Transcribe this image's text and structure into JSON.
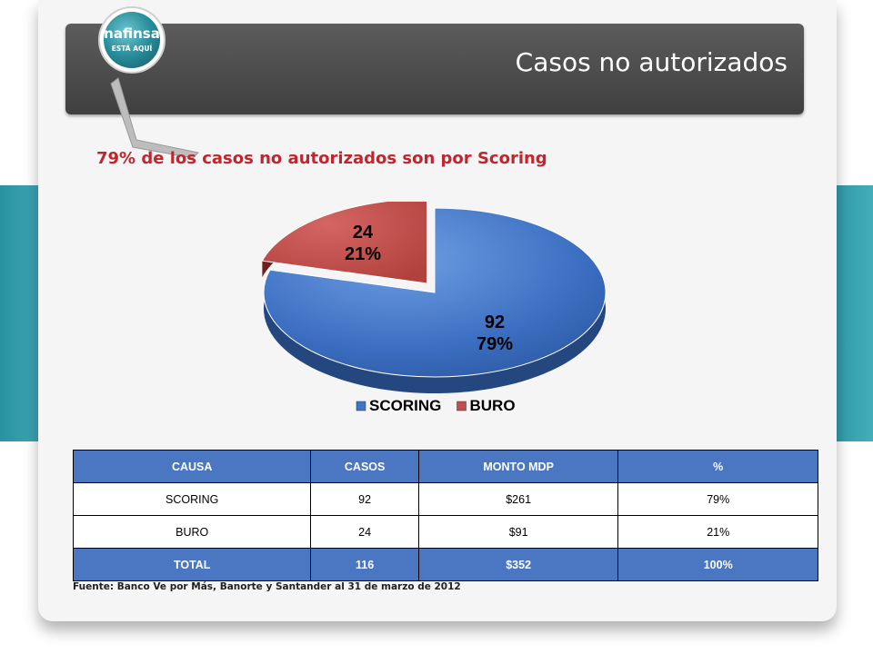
{
  "header": {
    "title": "Casos no autorizados",
    "logo_brand": "nafinsa",
    "logo_tagline": "ESTÁ AQUÍ"
  },
  "subtitle": "79% de los casos no autorizados son por Scoring",
  "chart_data": {
    "type": "pie",
    "title": "",
    "slices": [
      {
        "label": "SCORING",
        "value": 92,
        "percent": "79%",
        "color": "#3f75c7"
      },
      {
        "label": "BURO",
        "value": 24,
        "percent": "21%",
        "color": "#c0504d"
      }
    ],
    "legend": "bottom",
    "exploded": "BURO",
    "style": "3d"
  },
  "table": {
    "headers": [
      "CAUSA",
      "CASOS",
      "MONTO MDP",
      "%"
    ],
    "rows": [
      [
        "SCORING",
        "92",
        "$261",
        "79%"
      ],
      [
        "BURO",
        "24",
        "$91",
        "21%"
      ]
    ],
    "total": [
      "TOTAL",
      "116",
      "$352",
      "100%"
    ]
  },
  "source": "Fuente: Banco Ve por Más, Banorte  y Santander al 31 de marzo de 2012",
  "colors": {
    "accent_red": "#c0262d",
    "header_bar": "#4a4a4a",
    "table_blue": "#4a76c2",
    "teal": "#2e9aa8"
  }
}
